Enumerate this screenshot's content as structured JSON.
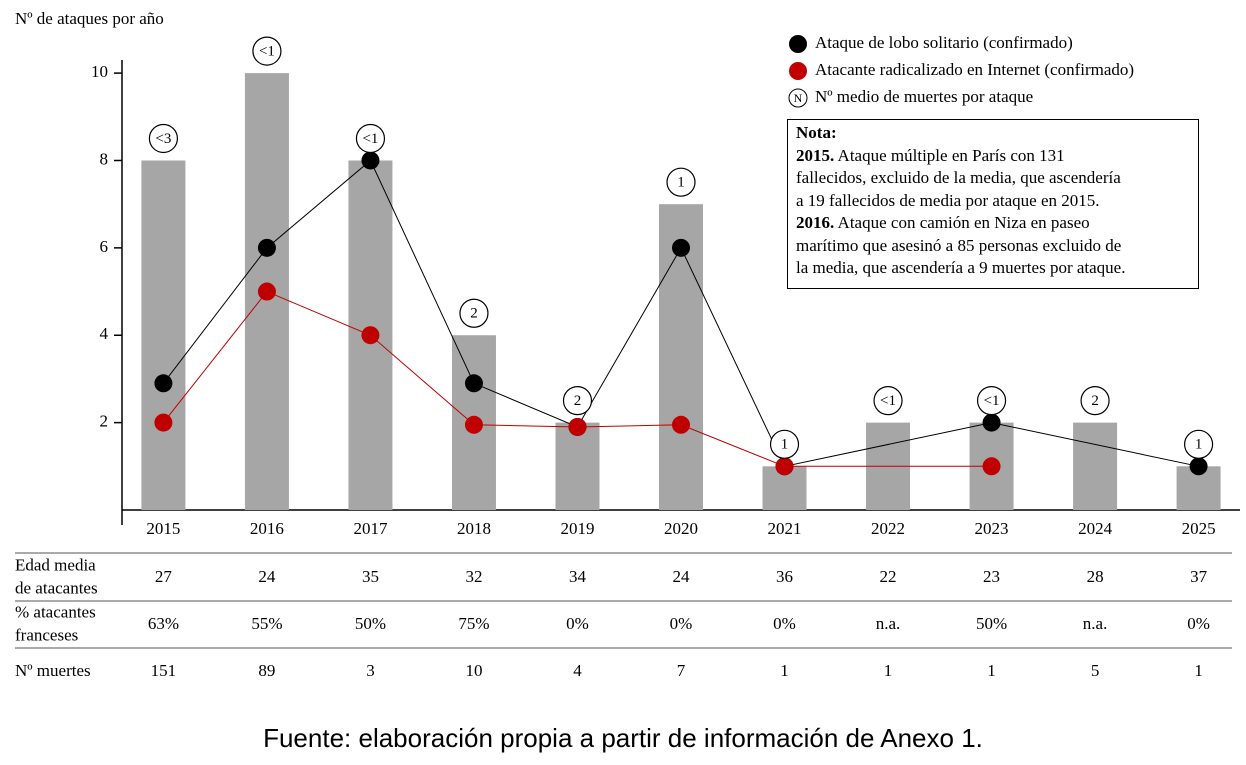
{
  "chart_data": {
    "type": "bar",
    "y_label": "Nº de ataques por año",
    "x": [
      2015,
      2016,
      2017,
      2018,
      2019,
      2020,
      2021,
      2022,
      2023,
      2024,
      2025
    ],
    "values": [
      8,
      10,
      8,
      4,
      2,
      7,
      1,
      2,
      2,
      2,
      1
    ],
    "color": "#a6a6a6",
    "avg_deaths": [
      "<3",
      "<1",
      "<1",
      "2",
      "2",
      "1",
      "1",
      "<1",
      "<1",
      "2",
      "1"
    ],
    "series": [
      {
        "name": "Ataque de lobo solitario (confirmado)",
        "color": "#000000",
        "x": [
          2015,
          2016,
          2017,
          2018,
          2019,
          2020,
          2021,
          2023,
          2025
        ],
        "values": [
          2.9,
          6,
          8,
          2.9,
          1.9,
          6,
          1,
          2,
          1
        ]
      },
      {
        "name": "Atacante radicalizado en Internet (confirmado)",
        "color": "#c00000",
        "x": [
          2015,
          2016,
          2017,
          2018,
          2019,
          2020,
          2021,
          2023
        ],
        "values": [
          2,
          5,
          4,
          1.95,
          1.9,
          1.95,
          1,
          1
        ]
      }
    ],
    "bubble_legend": {
      "symbol": "N",
      "label": "Nº medio de muertes por ataque"
    },
    "note": {
      "title": "Nota:",
      "lines": [
        {
          "bold": "2015.",
          "text": " Ataque múltiple en París con 131"
        },
        {
          "text": "fallecidos, excluido de la media, que ascendería"
        },
        {
          "text": "a 19 fallecidos de media por ataque en 2015."
        },
        {
          "bold": "2016.",
          "text": " Ataque con camión en Niza en paseo"
        },
        {
          "text": "marítimo que asesinó a 85 personas excluido de"
        },
        {
          "text": "la media, que ascendería a 9 muertes por ataque."
        }
      ]
    },
    "xlim": [
      2014.6,
      2025.4
    ],
    "ylim": [
      0,
      10.3
    ],
    "yticks": [
      2,
      4,
      6,
      8,
      10
    ],
    "table": {
      "rows": [
        {
          "label": [
            "Edad media",
            "de atacantes"
          ],
          "values": [
            "27",
            "24",
            "35",
            "32",
            "34",
            "24",
            "36",
            "22",
            "23",
            "28",
            "37"
          ]
        },
        {
          "label": [
            "% atacantes",
            "franceses"
          ],
          "values": [
            "63%",
            "55%",
            "50%",
            "75%",
            "0%",
            "0%",
            "0%",
            "n.a.",
            "50%",
            "n.a.",
            "0%"
          ]
        },
        {
          "label": [
            "Nº muertes"
          ],
          "values": [
            "151",
            "89",
            "3",
            "10",
            "4",
            "7",
            "1",
            "1",
            "1",
            "5",
            "1"
          ]
        }
      ]
    },
    "source": "Fuente: elaboración propia a partir de información de Anexo 1."
  }
}
